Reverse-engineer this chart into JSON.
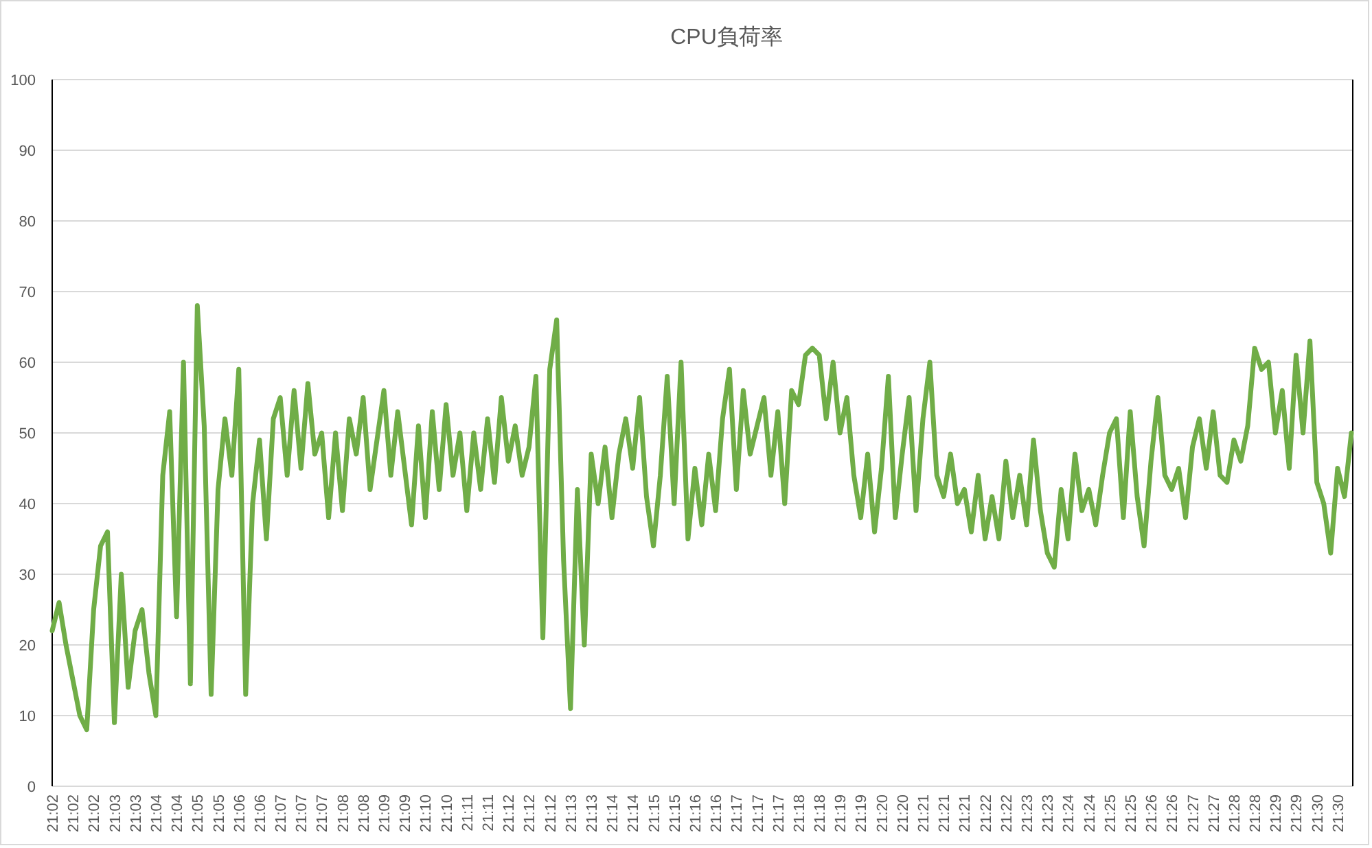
{
  "chart_data": {
    "type": "line",
    "title": "CPU負荷率",
    "categories": [
      "21:02",
      null,
      null,
      "21:02",
      null,
      null,
      "21:02",
      null,
      null,
      "21:03",
      null,
      null,
      "21:03",
      null,
      null,
      "21:04",
      null,
      null,
      "21:04",
      null,
      null,
      "21:05",
      null,
      null,
      "21:05",
      null,
      null,
      "21:06",
      null,
      null,
      "21:06",
      null,
      null,
      "21:07",
      null,
      null,
      "21:07",
      null,
      null,
      "21:07",
      null,
      null,
      "21:08",
      null,
      null,
      "21:08",
      null,
      null,
      "21:09",
      null,
      null,
      "21:09",
      null,
      null,
      "21:10",
      null,
      null,
      "21:10",
      null,
      null,
      "21:11",
      null,
      null,
      "21:11",
      null,
      null,
      "21:12",
      null,
      null,
      "21:12",
      null,
      null,
      "21:12",
      null,
      null,
      "21:13",
      null,
      null,
      "21:13",
      null,
      null,
      "21:14",
      null,
      null,
      "21:14",
      null,
      null,
      "21:15",
      null,
      null,
      "21:15",
      null,
      null,
      "21:16",
      null,
      null,
      "21:16",
      null,
      null,
      "21:17",
      null,
      null,
      "21:17",
      null,
      null,
      "21:17",
      null,
      null,
      "21:18",
      null,
      null,
      "21:18",
      null,
      null,
      "21:19",
      null,
      null,
      "21:19",
      null,
      null,
      "21:20",
      null,
      null,
      "21:20",
      null,
      null,
      "21:21",
      null,
      null,
      "21:21",
      null,
      null,
      "21:21",
      null,
      null,
      "21:22",
      null,
      null,
      "21:22",
      null,
      null,
      "21:23",
      null,
      null,
      "21:23",
      null,
      null,
      "21:24",
      null,
      null,
      "21:24",
      null,
      null,
      "21:25",
      null,
      null,
      "21:25",
      null,
      null,
      "21:26",
      null,
      null,
      "21:26",
      null,
      null,
      "21:27",
      null,
      null,
      "21:27",
      null,
      null,
      "21:28",
      null,
      null,
      "21:28",
      null,
      null,
      "21:29",
      null,
      null,
      "21:29",
      null,
      null,
      "21:30",
      null,
      null,
      "21:30",
      null,
      null
    ],
    "values": [
      22,
      26,
      20,
      15,
      10,
      8,
      25,
      34,
      36,
      9,
      30,
      14,
      22,
      25,
      16,
      10,
      44,
      53,
      24,
      60,
      14.5,
      68,
      51,
      13,
      42,
      52,
      44,
      59,
      13,
      40,
      49,
      35,
      52,
      55,
      44,
      56,
      45,
      57,
      47,
      50,
      38,
      50,
      39,
      52,
      47,
      55,
      42,
      49,
      56,
      44,
      53,
      45,
      37,
      51,
      38,
      53,
      42,
      54,
      44,
      50,
      39,
      50,
      42,
      52,
      43,
      55,
      46,
      51,
      44,
      48,
      58,
      21,
      59,
      66,
      32,
      11,
      42,
      20,
      47,
      40,
      48,
      38,
      47,
      52,
      45,
      55,
      41,
      34,
      44,
      58,
      40,
      60,
      35,
      45,
      37,
      47,
      39,
      52,
      59,
      42,
      56,
      47,
      51,
      55,
      44,
      53,
      40,
      56,
      54,
      61,
      62,
      61,
      52,
      60,
      50,
      55,
      44,
      38,
      47,
      36,
      45,
      58,
      38,
      47,
      55,
      39,
      52,
      60,
      44,
      41,
      47,
      40,
      42,
      36,
      44,
      35,
      41,
      35,
      46,
      38,
      44,
      37,
      49,
      39,
      33,
      31,
      42,
      35,
      47,
      39,
      42,
      37,
      44,
      50,
      52,
      38,
      53,
      41,
      34,
      46,
      55,
      44,
      42,
      45,
      38,
      48,
      52,
      45,
      53,
      44,
      43,
      49,
      46,
      51,
      62,
      59,
      60,
      50,
      56,
      45,
      61,
      50,
      63,
      43,
      40,
      33,
      45,
      41,
      50
    ],
    "color": "#70ad47",
    "ylim": [
      0,
      100
    ],
    "yticks": [
      0,
      10,
      20,
      30,
      40,
      50,
      60,
      70,
      80,
      90,
      100
    ],
    "grid": "y"
  }
}
